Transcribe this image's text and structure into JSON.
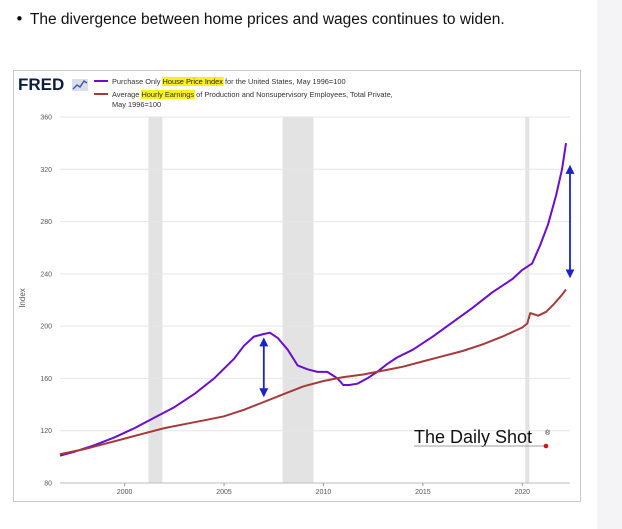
{
  "bullet": {
    "text": "The divergence between home prices and wages continues to widen."
  },
  "chart_data": {
    "type": "line",
    "title": "",
    "ylabel": "Index",
    "xlabel": "",
    "ylim": [
      80,
      360
    ],
    "xlim": [
      1996.75,
      2022.4
    ],
    "yticks": [
      80,
      120,
      160,
      200,
      240,
      280,
      320,
      360
    ],
    "xticks": [
      2000,
      2005,
      2010,
      2015,
      2020
    ],
    "grid": "horizontal",
    "legend_position": "top-left",
    "watermark": "The Daily Shot",
    "source_logo": "FRED",
    "recessions": [
      {
        "start": 2001.2,
        "end": 2001.9
      },
      {
        "start": 2007.95,
        "end": 2009.5
      },
      {
        "start": 2020.15,
        "end": 2020.35
      }
    ],
    "series": [
      {
        "name": "Purchase Only House Price Index for the United States, May 1996=100",
        "legend_parts": [
          "Purchase Only ",
          "House Price Index",
          " for the United States, May 1996=100"
        ],
        "color": "#6a0dce",
        "x": [
          1996.75,
          1997.5,
          1998.5,
          1999.5,
          2000.5,
          2001.5,
          2002.5,
          2003.5,
          2004.5,
          2005.5,
          2006.0,
          2006.5,
          2007.0,
          2007.3,
          2007.7,
          2008.2,
          2008.7,
          2009.2,
          2009.7,
          2010.2,
          2010.7,
          2011.0,
          2011.3,
          2011.7,
          2012.2,
          2012.7,
          2013.2,
          2013.7,
          2014.5,
          2015.5,
          2016.5,
          2017.5,
          2018.5,
          2019.5,
          2020.0,
          2020.5,
          2020.9,
          2021.3,
          2021.7,
          2022.0,
          2022.2
        ],
        "values": [
          101,
          104,
          109,
          115,
          122,
          130,
          138,
          148,
          160,
          175,
          185,
          192,
          194,
          195,
          191,
          182,
          170,
          167,
          165,
          165,
          160,
          155,
          155,
          156,
          160,
          165,
          171,
          176,
          182,
          192,
          203,
          214,
          226,
          236,
          243,
          248,
          262,
          278,
          300,
          320,
          340
        ]
      },
      {
        "name": "Average Hourly Earnings of Production and Nonsupervisory Employees, Total Private, May 1996=100",
        "legend_parts": [
          "Average ",
          "Hourly Earnings",
          " of Production and Nonsupervisory Employees, Total Private, May 1996=100"
        ],
        "color": "#a63a3a",
        "x": [
          1996.75,
          1998.0,
          1999.0,
          2000.0,
          2001.0,
          2002.0,
          2003.0,
          2004.0,
          2005.0,
          2006.0,
          2007.0,
          2008.0,
          2009.0,
          2010.0,
          2011.0,
          2012.0,
          2013.0,
          2014.0,
          2015.0,
          2016.0,
          2017.0,
          2018.0,
          2019.0,
          2020.0,
          2020.25,
          2020.4,
          2020.8,
          2021.2,
          2021.6,
          2022.0,
          2022.2
        ],
        "values": [
          102,
          106,
          110,
          114,
          118,
          122,
          125,
          128,
          131,
          136,
          142,
          148,
          154,
          158,
          161,
          163,
          166,
          169,
          173,
          177,
          181,
          186,
          192,
          199,
          202,
          210,
          208,
          211,
          217,
          224,
          228
        ]
      }
    ],
    "annotations": [
      {
        "type": "double-arrow",
        "x": 2007.0,
        "y_from": 190,
        "y_to": 147,
        "color": "#1a22cc"
      },
      {
        "type": "double-arrow",
        "x": 2022.4,
        "y_from": 322,
        "y_to": 238,
        "color": "#1a22cc"
      }
    ]
  }
}
